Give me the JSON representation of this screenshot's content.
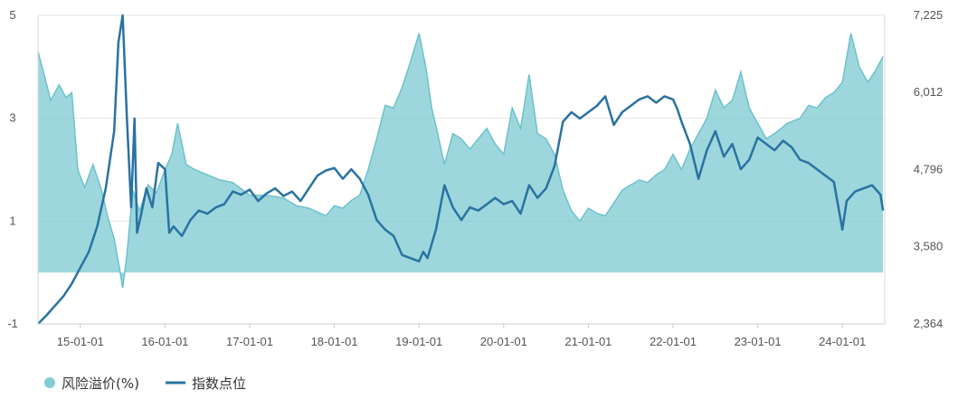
{
  "chart_data": {
    "type": "line",
    "x_ticks": [
      "15-01-01",
      "16-01-01",
      "17-01-01",
      "18-01-01",
      "19-01-01",
      "20-01-01",
      "21-01-01",
      "22-01-01",
      "23-01-01",
      "24-01-01"
    ],
    "y_left": {
      "ticks": [
        "-1",
        "1",
        "3",
        "5"
      ],
      "lim": [
        -1,
        5
      ]
    },
    "y_right": {
      "ticks": [
        "2,364",
        "3,580",
        "4,796",
        "6,012",
        "7,225"
      ],
      "lim": [
        2364,
        7225
      ]
    },
    "x_range": [
      2014.5,
      2024.5
    ],
    "legend_position": "bottom-left",
    "grid": "horizontal",
    "series": [
      {
        "name": "风险溢价(%)",
        "kind": "area",
        "axis": "left",
        "baseline": 0,
        "color": "#82ccd4",
        "points": [
          [
            2014.5,
            4.3
          ],
          [
            2014.58,
            3.8
          ],
          [
            2014.65,
            3.35
          ],
          [
            2014.75,
            3.65
          ],
          [
            2014.83,
            3.4
          ],
          [
            2014.9,
            3.5
          ],
          [
            2014.97,
            2.0
          ],
          [
            2015.05,
            1.65
          ],
          [
            2015.15,
            2.1
          ],
          [
            2015.25,
            1.6
          ],
          [
            2015.32,
            1.1
          ],
          [
            2015.4,
            0.65
          ],
          [
            2015.46,
            0.1
          ],
          [
            2015.5,
            -0.3
          ],
          [
            2015.55,
            0.35
          ],
          [
            2015.62,
            1.6
          ],
          [
            2015.7,
            1.2
          ],
          [
            2015.8,
            1.7
          ],
          [
            2015.9,
            1.55
          ],
          [
            2016.0,
            2.0
          ],
          [
            2016.08,
            2.3
          ],
          [
            2016.15,
            2.9
          ],
          [
            2016.25,
            2.1
          ],
          [
            2016.35,
            2.0
          ],
          [
            2016.5,
            1.9
          ],
          [
            2016.65,
            1.8
          ],
          [
            2016.8,
            1.75
          ],
          [
            2017.0,
            1.5
          ],
          [
            2017.2,
            1.5
          ],
          [
            2017.4,
            1.45
          ],
          [
            2017.55,
            1.3
          ],
          [
            2017.7,
            1.25
          ],
          [
            2017.9,
            1.1
          ],
          [
            2018.0,
            1.3
          ],
          [
            2018.1,
            1.25
          ],
          [
            2018.2,
            1.4
          ],
          [
            2018.3,
            1.5
          ],
          [
            2018.4,
            2.0
          ],
          [
            2018.5,
            2.6
          ],
          [
            2018.6,
            3.25
          ],
          [
            2018.7,
            3.2
          ],
          [
            2018.8,
            3.6
          ],
          [
            2018.9,
            4.1
          ],
          [
            2019.0,
            4.65
          ],
          [
            2019.08,
            4.0
          ],
          [
            2019.15,
            3.2
          ],
          [
            2019.22,
            2.7
          ],
          [
            2019.3,
            2.1
          ],
          [
            2019.4,
            2.7
          ],
          [
            2019.5,
            2.6
          ],
          [
            2019.6,
            2.4
          ],
          [
            2019.7,
            2.6
          ],
          [
            2019.8,
            2.8
          ],
          [
            2019.9,
            2.5
          ],
          [
            2020.0,
            2.3
          ],
          [
            2020.1,
            3.2
          ],
          [
            2020.2,
            2.8
          ],
          [
            2020.3,
            3.85
          ],
          [
            2020.4,
            2.7
          ],
          [
            2020.5,
            2.6
          ],
          [
            2020.6,
            2.3
          ],
          [
            2020.7,
            1.6
          ],
          [
            2020.8,
            1.2
          ],
          [
            2020.9,
            1.0
          ],
          [
            2021.0,
            1.25
          ],
          [
            2021.1,
            1.15
          ],
          [
            2021.2,
            1.1
          ],
          [
            2021.3,
            1.35
          ],
          [
            2021.4,
            1.6
          ],
          [
            2021.5,
            1.7
          ],
          [
            2021.6,
            1.8
          ],
          [
            2021.7,
            1.75
          ],
          [
            2021.8,
            1.9
          ],
          [
            2021.9,
            2.0
          ],
          [
            2022.0,
            2.3
          ],
          [
            2022.1,
            2.0
          ],
          [
            2022.2,
            2.4
          ],
          [
            2022.3,
            2.7
          ],
          [
            2022.4,
            3.0
          ],
          [
            2022.5,
            3.55
          ],
          [
            2022.6,
            3.2
          ],
          [
            2022.7,
            3.35
          ],
          [
            2022.8,
            3.9
          ],
          [
            2022.9,
            3.2
          ],
          [
            2023.0,
            2.9
          ],
          [
            2023.1,
            2.6
          ],
          [
            2023.2,
            2.7
          ],
          [
            2023.35,
            2.9
          ],
          [
            2023.5,
            3.0
          ],
          [
            2023.6,
            3.25
          ],
          [
            2023.7,
            3.2
          ],
          [
            2023.8,
            3.4
          ],
          [
            2023.9,
            3.5
          ],
          [
            2024.0,
            3.7
          ],
          [
            2024.1,
            4.65
          ],
          [
            2024.2,
            4.0
          ],
          [
            2024.3,
            3.7
          ],
          [
            2024.4,
            3.95
          ],
          [
            2024.48,
            4.2
          ]
        ]
      },
      {
        "name": "指数点位",
        "kind": "line",
        "axis": "right",
        "color": "#2a72a0",
        "points": [
          [
            2014.5,
            2364
          ],
          [
            2014.6,
            2500
          ],
          [
            2014.7,
            2650
          ],
          [
            2014.8,
            2800
          ],
          [
            2014.9,
            3000
          ],
          [
            2015.0,
            3250
          ],
          [
            2015.1,
            3500
          ],
          [
            2015.2,
            3900
          ],
          [
            2015.3,
            4500
          ],
          [
            2015.4,
            5400
          ],
          [
            2015.45,
            6800
          ],
          [
            2015.5,
            7225
          ],
          [
            2015.55,
            5600
          ],
          [
            2015.6,
            4200
          ],
          [
            2015.64,
            5600
          ],
          [
            2015.67,
            3800
          ],
          [
            2015.72,
            4100
          ],
          [
            2015.78,
            4500
          ],
          [
            2015.85,
            4200
          ],
          [
            2015.92,
            4900
          ],
          [
            2016.0,
            4800
          ],
          [
            2016.05,
            3800
          ],
          [
            2016.1,
            3900
          ],
          [
            2016.2,
            3750
          ],
          [
            2016.3,
            4000
          ],
          [
            2016.4,
            4150
          ],
          [
            2016.5,
            4100
          ],
          [
            2016.6,
            4200
          ],
          [
            2016.7,
            4250
          ],
          [
            2016.8,
            4450
          ],
          [
            2016.9,
            4400
          ],
          [
            2017.0,
            4480
          ],
          [
            2017.1,
            4300
          ],
          [
            2017.2,
            4420
          ],
          [
            2017.3,
            4500
          ],
          [
            2017.4,
            4380
          ],
          [
            2017.5,
            4450
          ],
          [
            2017.6,
            4300
          ],
          [
            2017.7,
            4500
          ],
          [
            2017.8,
            4700
          ],
          [
            2017.9,
            4780
          ],
          [
            2018.0,
            4820
          ],
          [
            2018.1,
            4650
          ],
          [
            2018.2,
            4800
          ],
          [
            2018.3,
            4650
          ],
          [
            2018.4,
            4400
          ],
          [
            2018.5,
            4000
          ],
          [
            2018.6,
            3850
          ],
          [
            2018.7,
            3750
          ],
          [
            2018.8,
            3450
          ],
          [
            2018.9,
            3400
          ],
          [
            2019.0,
            3350
          ],
          [
            2019.05,
            3500
          ],
          [
            2019.1,
            3400
          ],
          [
            2019.2,
            3850
          ],
          [
            2019.3,
            4550
          ],
          [
            2019.4,
            4200
          ],
          [
            2019.5,
            4000
          ],
          [
            2019.6,
            4200
          ],
          [
            2019.7,
            4150
          ],
          [
            2019.8,
            4250
          ],
          [
            2019.9,
            4350
          ],
          [
            2020.0,
            4250
          ],
          [
            2020.1,
            4300
          ],
          [
            2020.2,
            4100
          ],
          [
            2020.3,
            4550
          ],
          [
            2020.4,
            4350
          ],
          [
            2020.5,
            4500
          ],
          [
            2020.6,
            4850
          ],
          [
            2020.7,
            5550
          ],
          [
            2020.8,
            5700
          ],
          [
            2020.9,
            5600
          ],
          [
            2021.0,
            5700
          ],
          [
            2021.1,
            5800
          ],
          [
            2021.2,
            5950
          ],
          [
            2021.3,
            5500
          ],
          [
            2021.4,
            5700
          ],
          [
            2021.5,
            5800
          ],
          [
            2021.6,
            5900
          ],
          [
            2021.7,
            5950
          ],
          [
            2021.8,
            5850
          ],
          [
            2021.9,
            5950
          ],
          [
            2022.0,
            5900
          ],
          [
            2022.05,
            5750
          ],
          [
            2022.1,
            5550
          ],
          [
            2022.2,
            5200
          ],
          [
            2022.3,
            4650
          ],
          [
            2022.4,
            5100
          ],
          [
            2022.5,
            5400
          ],
          [
            2022.6,
            5000
          ],
          [
            2022.7,
            5200
          ],
          [
            2022.8,
            4800
          ],
          [
            2022.9,
            4950
          ],
          [
            2023.0,
            5300
          ],
          [
            2023.1,
            5200
          ],
          [
            2023.2,
            5100
          ],
          [
            2023.3,
            5250
          ],
          [
            2023.4,
            5150
          ],
          [
            2023.5,
            4950
          ],
          [
            2023.6,
            4900
          ],
          [
            2023.7,
            4800
          ],
          [
            2023.8,
            4700
          ],
          [
            2023.9,
            4600
          ],
          [
            2024.0,
            3850
          ],
          [
            2024.05,
            4300
          ],
          [
            2024.15,
            4450
          ],
          [
            2024.25,
            4500
          ],
          [
            2024.35,
            4550
          ],
          [
            2024.45,
            4400
          ],
          [
            2024.48,
            4150
          ]
        ]
      }
    ]
  }
}
